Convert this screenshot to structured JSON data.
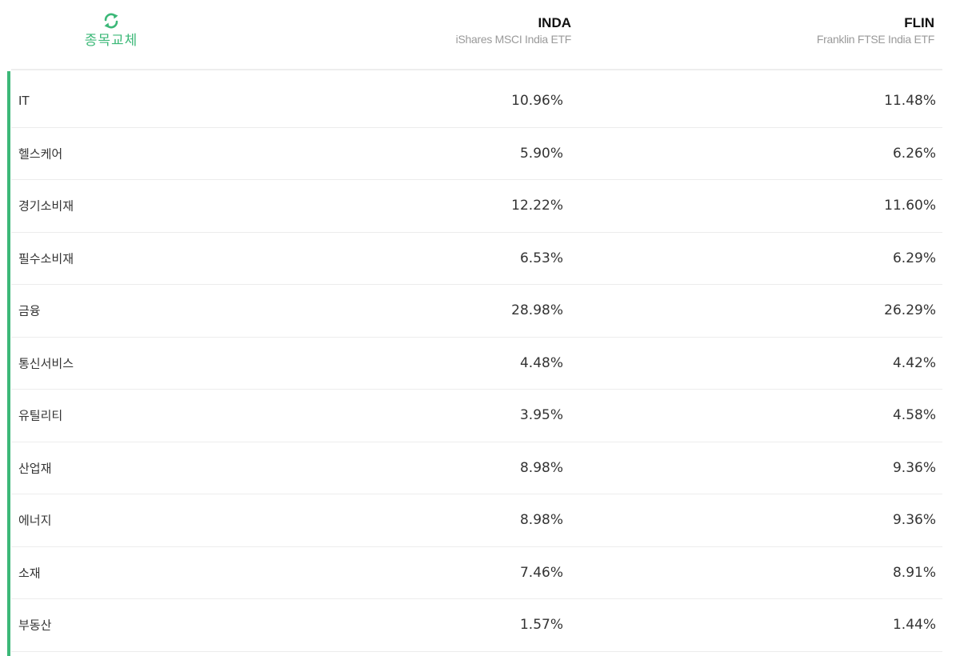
{
  "header": {
    "swap_label": "종목교체",
    "funds": [
      {
        "ticker": "INDA",
        "name": "iShares MSCI India ETF"
      },
      {
        "ticker": "FLIN",
        "name": "Franklin FTSE India ETF"
      }
    ]
  },
  "colors": {
    "accent": "#3cb878",
    "divider": "#ececec"
  },
  "icons": {
    "swap": "refresh-arrows-icon"
  },
  "rows": [
    {
      "sector": "IT",
      "inda": "10.96%",
      "flin": "11.48%"
    },
    {
      "sector": "헬스케어",
      "inda": "5.90%",
      "flin": "6.26%"
    },
    {
      "sector": "경기소비재",
      "inda": "12.22%",
      "flin": "11.60%"
    },
    {
      "sector": "필수소비재",
      "inda": "6.53%",
      "flin": "6.29%"
    },
    {
      "sector": "금융",
      "inda": "28.98%",
      "flin": "26.29%"
    },
    {
      "sector": "통신서비스",
      "inda": "4.48%",
      "flin": "4.42%"
    },
    {
      "sector": "유틸리티",
      "inda": "3.95%",
      "flin": "4.58%"
    },
    {
      "sector": "산업재",
      "inda": "8.98%",
      "flin": "9.36%"
    },
    {
      "sector": "에너지",
      "inda": "8.98%",
      "flin": "9.36%"
    },
    {
      "sector": "소재",
      "inda": "7.46%",
      "flin": "8.91%"
    },
    {
      "sector": "부동산",
      "inda": "1.57%",
      "flin": "1.44%"
    }
  ]
}
